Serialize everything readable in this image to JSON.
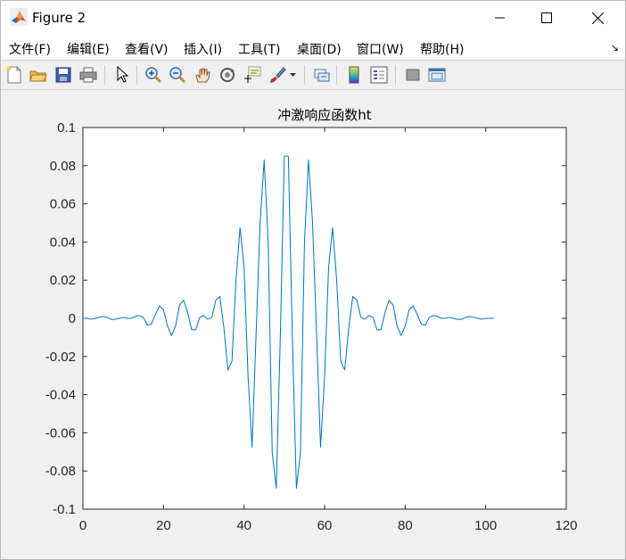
{
  "window": {
    "title": "Figure 2"
  },
  "menu": [
    {
      "label": "文件(F)"
    },
    {
      "label": "编辑(E)"
    },
    {
      "label": "查看(V)"
    },
    {
      "label": "插入(I)"
    },
    {
      "label": "工具(T)"
    },
    {
      "label": "桌面(D)"
    },
    {
      "label": "窗口(W)"
    },
    {
      "label": "帮助(H)"
    }
  ],
  "toolbar_icons": [
    "new-figure-icon",
    "open-file-icon",
    "save-icon",
    "print-icon",
    "edit-plot-arrow-icon",
    "zoom-in-icon",
    "zoom-out-icon",
    "pan-hand-icon",
    "rotate-3d-icon",
    "data-cursor-icon",
    "brush-icon",
    "link-plot-icon",
    "colorbar-icon",
    "legend-icon",
    "hide-plot-tools-icon",
    "show-plot-tools-icon"
  ],
  "colors": {
    "line": "#0072bd",
    "axes_bg": "#ffffff",
    "figure_bg": "#f0f0f0"
  },
  "chart_data": {
    "type": "line",
    "title": "冲激响应函数ht",
    "xlabel": "",
    "ylabel": "",
    "xlim": [
      0,
      120
    ],
    "ylim": [
      -0.1,
      0.1
    ],
    "xticks": [
      "0",
      "20",
      "40",
      "60",
      "80",
      "100",
      "120"
    ],
    "yticks": [
      "-0.1",
      "-0.08",
      "-0.06",
      "-0.04",
      "-0.02",
      "0",
      "0.02",
      "0.04",
      "0.06",
      "0.08",
      "0.1"
    ],
    "grid": false,
    "series": [
      {
        "x": [
          0,
          1,
          2,
          3,
          4,
          5,
          6,
          7,
          8,
          9,
          10,
          11,
          12,
          13,
          14,
          15,
          16,
          17,
          18,
          19,
          20,
          21,
          22,
          23,
          24,
          25,
          26,
          27,
          28,
          29,
          30,
          31,
          32,
          33,
          34,
          35,
          36,
          37,
          38,
          39,
          40,
          41,
          42,
          43,
          44,
          45,
          46,
          47,
          48,
          49,
          50,
          51,
          52,
          53,
          54,
          55,
          56,
          57,
          58,
          59,
          60,
          61,
          62,
          63,
          64,
          65,
          66,
          67,
          68,
          69,
          70,
          71,
          72,
          73,
          74,
          75,
          76,
          77,
          78,
          79,
          80,
          81,
          82,
          83,
          84,
          85,
          86,
          87,
          88,
          89,
          90,
          91,
          92,
          93,
          94,
          95,
          96,
          97,
          98,
          99,
          100,
          101,
          102
        ],
        "y": [
          0,
          0,
          -0.0005,
          0,
          0.0005,
          0.001,
          0.0005,
          -0.0005,
          -0.0005,
          0,
          0.0005,
          0,
          0,
          0.001,
          0.0015,
          0.0005,
          -0.0035,
          -0.003,
          0.002,
          0.0065,
          0.0045,
          -0.004,
          -0.009,
          -0.004,
          0.007,
          0.0095,
          0.003,
          -0.006,
          -0.006,
          0.0005,
          0.0015,
          -0.0005,
          0.0005,
          0.0095,
          0.0115,
          -0.005,
          -0.027,
          -0.0225,
          0.02,
          0.0475,
          0.027,
          -0.0305,
          -0.0675,
          -0.0075,
          0.0505,
          0.083,
          0.0395,
          -0.0705,
          -0.089,
          -0.01,
          0.085,
          0.085,
          -0.01,
          -0.089,
          -0.0705,
          0.0395,
          0.083,
          0.0505,
          -0.0075,
          -0.0675,
          -0.0305,
          0.027,
          0.0475,
          0.02,
          -0.0225,
          -0.027,
          -0.005,
          0.0115,
          0.0095,
          0.0005,
          -0.0005,
          0.0015,
          0.0005,
          -0.006,
          -0.006,
          0.003,
          0.0095,
          0.007,
          -0.004,
          -0.009,
          -0.004,
          0.0045,
          0.0065,
          0.002,
          -0.003,
          -0.0035,
          0.0005,
          0.0015,
          0.001,
          0,
          0,
          0.0005,
          0,
          -0.0005,
          -0.0005,
          0.0005,
          0.001,
          0.0005,
          0,
          -0.0005,
          0,
          0,
          0
        ]
      }
    ]
  }
}
